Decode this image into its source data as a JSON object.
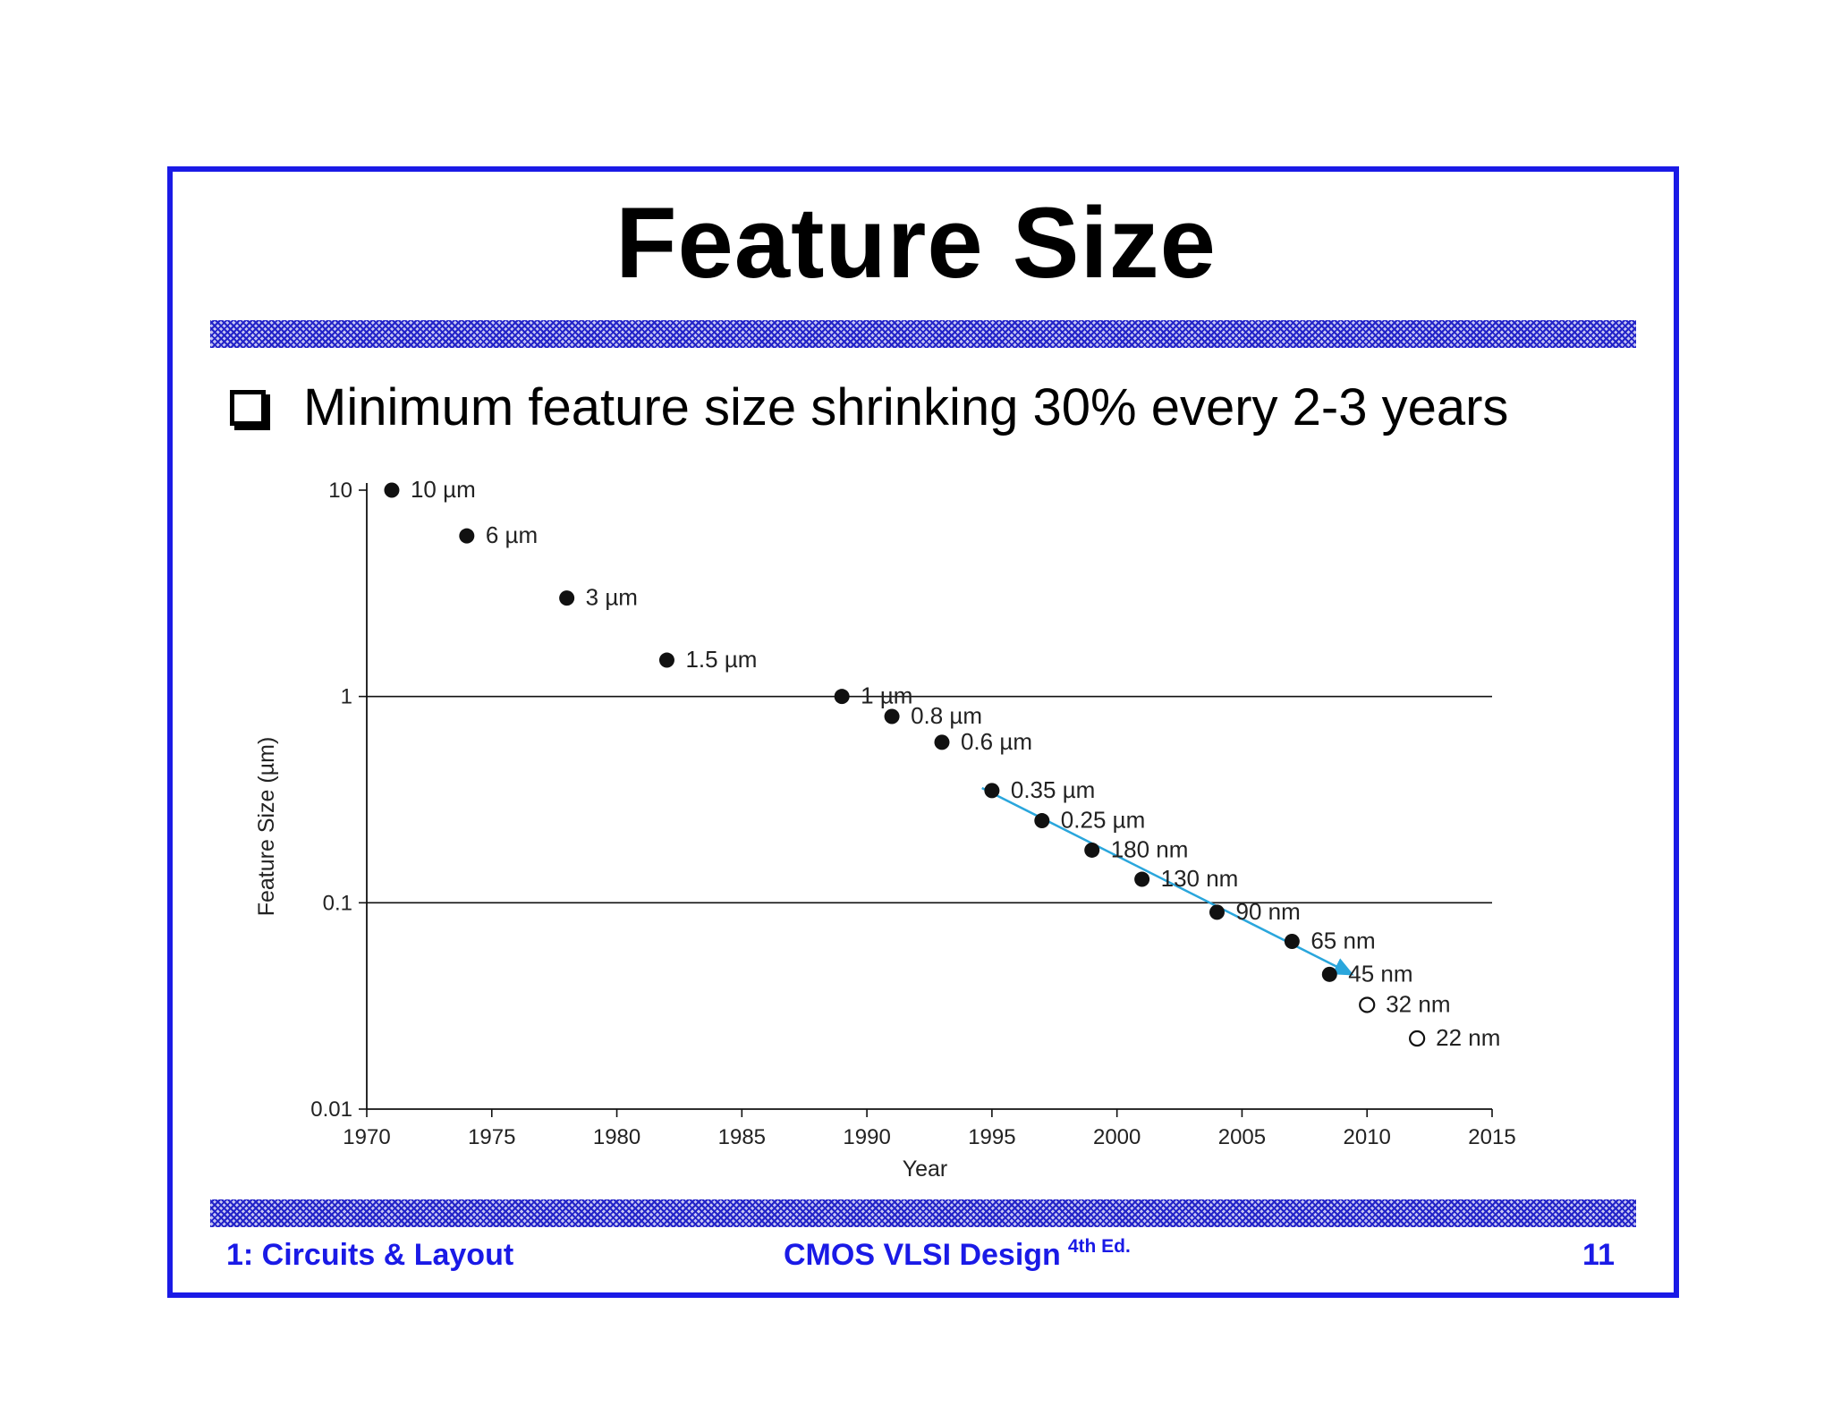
{
  "slide": {
    "title": "Feature Size",
    "bullet": "Minimum feature size shrinking 30% every 2-3 years",
    "footer_left": "1: Circuits & Layout",
    "footer_center": "CMOS VLSI Design",
    "footer_center_sup": "4th Ed.",
    "page_number": "11",
    "frame_color": "#1a1ae6",
    "bullet_icon": "checkbox-icon"
  },
  "chart_data": {
    "type": "scatter",
    "title": "",
    "xlabel": "Year",
    "ylabel": "Feature Size (µm)",
    "xlim": [
      1970,
      2015
    ],
    "ylim": [
      0.01,
      10
    ],
    "yscale": "log",
    "x_ticks": [
      "1970",
      "1975",
      "1980",
      "1985",
      "1990",
      "1995",
      "2000",
      "2005",
      "2010",
      "2015"
    ],
    "y_ticks": [
      {
        "value": 10,
        "label": "10"
      },
      {
        "value": 1,
        "label": "1"
      },
      {
        "value": 0.1,
        "label": "0.1"
      },
      {
        "value": 0.01,
        "label": "0.01"
      }
    ],
    "gridlines_y": [
      1,
      0.1
    ],
    "points": [
      {
        "x": 1971,
        "y": 10,
        "label": "10 µm",
        "filled": true
      },
      {
        "x": 1974,
        "y": 6,
        "label": "6 µm",
        "filled": true
      },
      {
        "x": 1978,
        "y": 3,
        "label": "3 µm",
        "filled": true
      },
      {
        "x": 1982,
        "y": 1.5,
        "label": "1.5 µm",
        "filled": true
      },
      {
        "x": 1989,
        "y": 1,
        "label": "1 µm",
        "filled": true
      },
      {
        "x": 1991,
        "y": 0.8,
        "label": "0.8 µm",
        "filled": true
      },
      {
        "x": 1993,
        "y": 0.6,
        "label": "0.6 µm",
        "filled": true
      },
      {
        "x": 1995,
        "y": 0.35,
        "label": "0.35 µm",
        "filled": true
      },
      {
        "x": 1997,
        "y": 0.25,
        "label": "0.25 µm",
        "filled": true
      },
      {
        "x": 1999,
        "y": 0.18,
        "label": "180 nm",
        "filled": true
      },
      {
        "x": 2001,
        "y": 0.13,
        "label": "130 nm",
        "filled": true
      },
      {
        "x": 2004,
        "y": 0.09,
        "label": "90 nm",
        "filled": true
      },
      {
        "x": 2007,
        "y": 0.065,
        "label": "65 nm",
        "filled": true
      },
      {
        "x": 2008.5,
        "y": 0.045,
        "label": "45 nm",
        "filled": true
      },
      {
        "x": 2010,
        "y": 0.032,
        "label": "32 nm",
        "filled": false
      },
      {
        "x": 2012,
        "y": 0.022,
        "label": "22 nm",
        "filled": false
      }
    ],
    "trend_arrow": {
      "x1": 1994.6,
      "y1": 0.36,
      "x2": 2009.4,
      "y2": 0.045,
      "color": "#2aa6dc"
    }
  }
}
